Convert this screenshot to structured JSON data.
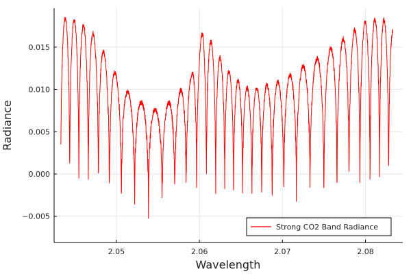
{
  "chart_data": {
    "type": "line",
    "title": "",
    "xlabel": "Wavelength",
    "ylabel": "Radiance",
    "xlim": [
      2.0425,
      2.0845
    ],
    "ylim": [
      -0.0081,
      0.0196
    ],
    "x_ticks": [
      2.05,
      2.06,
      2.07,
      2.08
    ],
    "x_tick_labels": [
      "2.05",
      "2.06",
      "2.07",
      "2.08"
    ],
    "y_ticks": [
      -0.005,
      0.0,
      0.005,
      0.01,
      0.015
    ],
    "y_tick_labels": [
      "−0.005",
      "0.000",
      "0.005",
      "0.010",
      "0.015"
    ],
    "grid": true,
    "legend_position": "bottom-right",
    "series": [
      {
        "name": "Strong CO2 Band Radiance",
        "color": "#ff0000",
        "x_start": 2.0433,
        "x_end": 2.0833,
        "envelope_note": "absorption-line spectrum; continuum peaks ~0.018 at left and right edges, ~0.017 at x≈2.060, dipping to ~0.008 near x≈2.052 and ~0.010 near x≈2.066; many deep lines dropping to ~-0.007",
        "continuum_x": [
          2.0433,
          2.045,
          2.047,
          2.049,
          2.051,
          2.053,
          2.055,
          2.057,
          2.059,
          2.0605,
          2.062,
          2.064,
          2.066,
          2.068,
          2.07,
          2.072,
          2.074,
          2.076,
          2.078,
          2.08,
          2.082,
          2.0833
        ],
        "continuum_y": [
          0.0185,
          0.0182,
          0.017,
          0.0135,
          0.01,
          0.0085,
          0.0075,
          0.009,
          0.0115,
          0.0173,
          0.0145,
          0.0115,
          0.01,
          0.0105,
          0.011,
          0.0125,
          0.0135,
          0.015,
          0.0165,
          0.018,
          0.0185,
          0.017
        ],
        "line_depth_min": -0.0073
      }
    ]
  }
}
